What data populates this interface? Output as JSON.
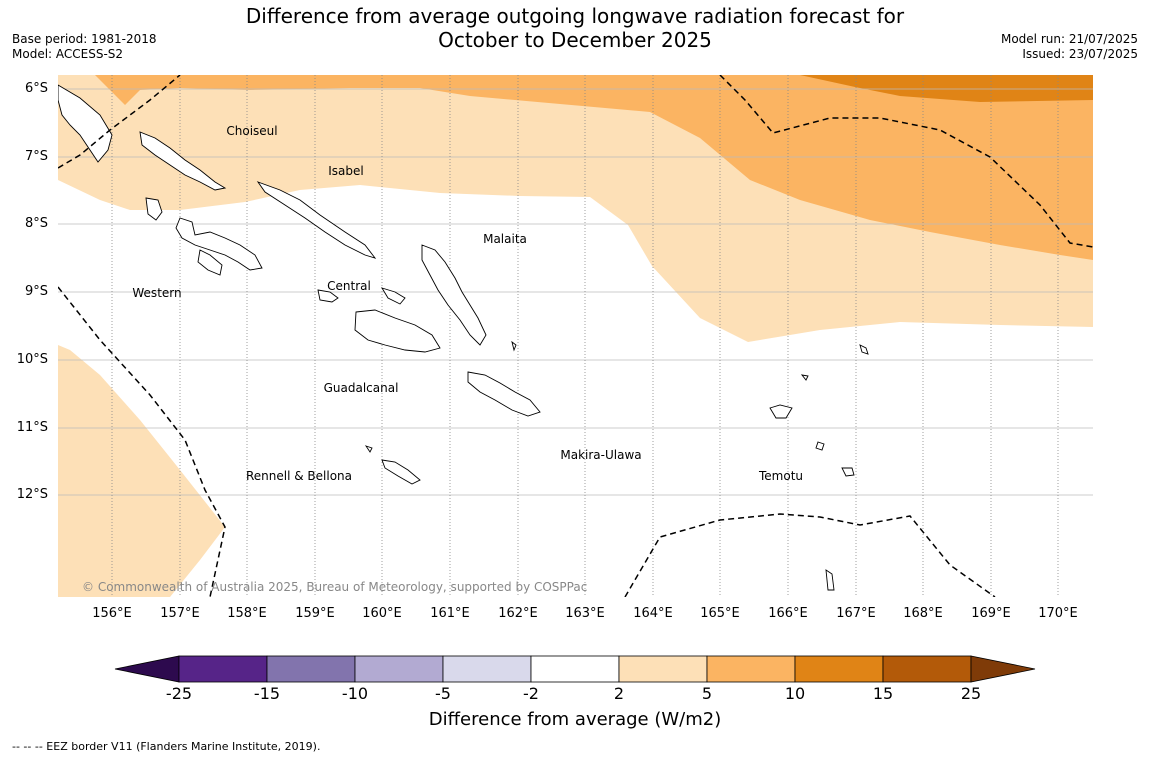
{
  "title_line1": "Difference from average outgoing longwave radiation forecast for",
  "title_line2": "October to December 2025",
  "meta_left": {
    "base_period": "Base period: 1981-2018",
    "model": "Model: ACCESS-S2"
  },
  "meta_right": {
    "model_run": "Model run: 21/07/2025",
    "issued": "Issued: 23/07/2025"
  },
  "lat_ticks": [
    "6°S",
    "7°S",
    "8°S",
    "9°S",
    "10°S",
    "11°S",
    "12°S"
  ],
  "lon_ticks": [
    "156°E",
    "157°E",
    "158°E",
    "159°E",
    "160°E",
    "161°E",
    "162°E",
    "163°E",
    "164°E",
    "165°E",
    "166°E",
    "167°E",
    "168°E",
    "169°E",
    "170°E"
  ],
  "regions": [
    "Choiseul",
    "Isabel",
    "Malaita",
    "Western",
    "Central",
    "Guadalcanal",
    "Makira-Ulawa",
    "Rennell & Bellona",
    "Temotu"
  ],
  "copyright": "© Commonwealth of Australia 2025, Bureau of Meteorology, supported by COSPPac",
  "colorbar": {
    "labels": [
      "-25",
      "-15",
      "-10",
      "-5",
      "-2",
      "2",
      "5",
      "10",
      "15",
      "25"
    ],
    "colors": [
      "#562488",
      "#8274ad",
      "#b2aad2",
      "#d9d9eb",
      "#ffffff",
      "#fde0b7",
      "#fbb462",
      "#e08416",
      "#b35a09"
    ],
    "under_color": "#2d0a4e",
    "over_color": "#7f3b08",
    "title": "Difference from average (W/m2)"
  },
  "footnote": "-- -- -- EEZ border V11 (Flanders Marine Institute, 2019)."
}
